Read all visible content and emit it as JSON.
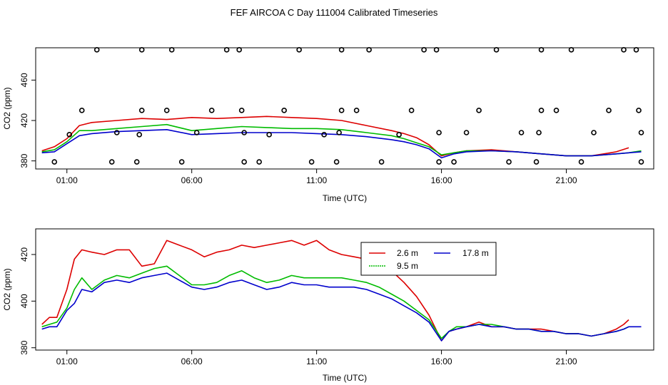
{
  "title": "FEF AIRCOA C  Day 111004  Calibrated Timeseries",
  "colors": {
    "2.6 m": "#dd0000",
    "9.5 m": "#00bb00",
    "17.8 m": "#0000cc",
    "flags": "#000000"
  },
  "chart_data": [
    {
      "type": "line",
      "panel": "top",
      "xlabel": "Time (UTC)",
      "ylabel": "CO2 (ppm)",
      "xlim": [
        -0.25,
        24.5
      ],
      "ylim": [
        372,
        492
      ],
      "xticks": [
        1,
        6,
        11,
        16,
        21
      ],
      "xticklabels": [
        "01:00",
        "06:00",
        "11:00",
        "16:00",
        "21:00"
      ],
      "yticks": [
        380,
        420,
        460
      ],
      "yticklabels": [
        "380",
        "420",
        "460"
      ],
      "grid": false,
      "series": [
        {
          "name": "2.6 m",
          "x": [
            0,
            0.5,
            1,
            1.5,
            2,
            3,
            4,
            5,
            6,
            7,
            8,
            9,
            10,
            11,
            12,
            13,
            14,
            14.5,
            15,
            15.5,
            16,
            16.5,
            17,
            18,
            19,
            20,
            21,
            22,
            22.5,
            23,
            23.5
          ],
          "values": [
            390,
            394,
            402,
            415,
            418,
            420,
            422,
            421,
            423,
            422,
            423,
            424,
            423,
            422,
            420,
            415,
            410,
            407,
            403,
            396,
            385,
            388,
            390,
            391,
            389,
            387,
            385,
            385,
            387,
            389,
            393
          ]
        },
        {
          "name": "9.5 m",
          "x": [
            0,
            0.5,
            1,
            1.5,
            2,
            3,
            4,
            5,
            6,
            7,
            8,
            9,
            10,
            11,
            12,
            13,
            14,
            14.5,
            15,
            15.5,
            16,
            16.5,
            17,
            18,
            19,
            20,
            21,
            22,
            22.5,
            23,
            23.5,
            24
          ],
          "values": [
            389,
            391,
            399,
            410,
            410,
            412,
            414,
            416,
            410,
            412,
            414,
            413,
            412,
            412,
            411,
            408,
            405,
            402,
            398,
            394,
            386,
            388,
            390,
            390,
            389,
            387,
            385,
            385,
            386,
            387,
            388,
            390
          ]
        },
        {
          "name": "17.8 m",
          "x": [
            0,
            0.5,
            1,
            1.5,
            2,
            3,
            4,
            5,
            6,
            7,
            8,
            9,
            10,
            11,
            12,
            13,
            14,
            14.5,
            15,
            15.5,
            16,
            16.5,
            17,
            18,
            19,
            20,
            21,
            22,
            22.5,
            23,
            23.5,
            24
          ],
          "values": [
            388,
            389,
            397,
            405,
            407,
            409,
            410,
            411,
            406,
            407,
            408,
            408,
            408,
            407,
            406,
            404,
            401,
            399,
            396,
            392,
            383,
            387,
            389,
            390,
            389,
            387,
            385,
            385,
            386,
            387,
            388,
            389
          ]
        }
      ],
      "flag_points": [
        {
          "x": 1.1,
          "y": 406
        },
        {
          "x": 1.6,
          "y": 430
        },
        {
          "x": 2.2,
          "y": 490
        },
        {
          "x": 0.5,
          "y": 379
        },
        {
          "x": 2.8,
          "y": 379
        },
        {
          "x": 3.0,
          "y": 408
        },
        {
          "x": 3.8,
          "y": 379
        },
        {
          "x": 3.9,
          "y": 406
        },
        {
          "x": 4.0,
          "y": 430
        },
        {
          "x": 4.0,
          "y": 490
        },
        {
          "x": 5.0,
          "y": 430
        },
        {
          "x": 5.2,
          "y": 490
        },
        {
          "x": 5.6,
          "y": 379
        },
        {
          "x": 6.2,
          "y": 408
        },
        {
          "x": 6.8,
          "y": 430
        },
        {
          "x": 7.4,
          "y": 490
        },
        {
          "x": 7.9,
          "y": 490
        },
        {
          "x": 8.0,
          "y": 430
        },
        {
          "x": 8.1,
          "y": 408
        },
        {
          "x": 8.1,
          "y": 379
        },
        {
          "x": 8.7,
          "y": 379
        },
        {
          "x": 9.1,
          "y": 406
        },
        {
          "x": 9.7,
          "y": 430
        },
        {
          "x": 10.3,
          "y": 490
        },
        {
          "x": 10.8,
          "y": 379
        },
        {
          "x": 11.3,
          "y": 406
        },
        {
          "x": 11.8,
          "y": 379
        },
        {
          "x": 11.9,
          "y": 408
        },
        {
          "x": 12.0,
          "y": 430
        },
        {
          "x": 12.0,
          "y": 490
        },
        {
          "x": 12.6,
          "y": 430
        },
        {
          "x": 13.1,
          "y": 490
        },
        {
          "x": 13.6,
          "y": 379
        },
        {
          "x": 14.3,
          "y": 406
        },
        {
          "x": 14.8,
          "y": 430
        },
        {
          "x": 15.3,
          "y": 490
        },
        {
          "x": 15.8,
          "y": 490
        },
        {
          "x": 15.9,
          "y": 408
        },
        {
          "x": 15.9,
          "y": 379
        },
        {
          "x": 16.5,
          "y": 379
        },
        {
          "x": 17.0,
          "y": 408
        },
        {
          "x": 17.5,
          "y": 430
        },
        {
          "x": 18.2,
          "y": 490
        },
        {
          "x": 18.7,
          "y": 379
        },
        {
          "x": 19.2,
          "y": 408
        },
        {
          "x": 19.8,
          "y": 379
        },
        {
          "x": 19.9,
          "y": 408
        },
        {
          "x": 20.0,
          "y": 430
        },
        {
          "x": 20.0,
          "y": 490
        },
        {
          "x": 20.6,
          "y": 430
        },
        {
          "x": 21.2,
          "y": 490
        },
        {
          "x": 21.6,
          "y": 379
        },
        {
          "x": 22.1,
          "y": 408
        },
        {
          "x": 22.7,
          "y": 430
        },
        {
          "x": 23.3,
          "y": 490
        },
        {
          "x": 23.8,
          "y": 490
        },
        {
          "x": 23.9,
          "y": 430
        },
        {
          "x": 24.0,
          "y": 408
        },
        {
          "x": 24.0,
          "y": 379
        }
      ]
    },
    {
      "type": "line",
      "panel": "bottom",
      "xlabel": "Time (UTC)",
      "ylabel": "CO2 (ppm)",
      "xlim": [
        -0.25,
        24.5
      ],
      "ylim": [
        379,
        431
      ],
      "xticks": [
        1,
        6,
        11,
        16,
        21
      ],
      "xticklabels": [
        "01:00",
        "06:00",
        "11:00",
        "16:00",
        "21:00"
      ],
      "yticks": [
        380,
        400,
        420
      ],
      "yticklabels": [
        "380",
        "400",
        "420"
      ],
      "grid": false,
      "legend": {
        "placement": "top-right",
        "entries": [
          "2.6 m",
          "9.5 m",
          "17.8 m"
        ]
      },
      "series": [
        {
          "name": "2.6 m",
          "x": [
            0,
            0.3,
            0.6,
            1,
            1.3,
            1.6,
            2,
            2.5,
            3,
            3.5,
            4,
            4.5,
            5,
            5.5,
            6,
            6.5,
            7,
            7.5,
            8,
            8.5,
            9,
            9.5,
            10,
            10.5,
            11,
            11.5,
            12,
            12.5,
            13,
            13.5,
            14,
            14.5,
            15,
            15.5,
            16,
            16.3,
            16.6,
            17,
            17.5,
            18,
            18.5,
            19,
            19.5,
            20,
            20.5,
            21,
            21.5,
            22,
            22.5,
            23,
            23.3,
            23.5
          ],
          "values": [
            390,
            393,
            393,
            405,
            418,
            422,
            421,
            420,
            422,
            422,
            415,
            416,
            426,
            424,
            422,
            419,
            421,
            422,
            424,
            423,
            424,
            425,
            426,
            424,
            426,
            422,
            420,
            419,
            418,
            414,
            413,
            408,
            402,
            394,
            383,
            387,
            388,
            389,
            391,
            389,
            389,
            388,
            388,
            388,
            387,
            386,
            386,
            385,
            386,
            388,
            390,
            392
          ]
        },
        {
          "name": "9.5 m",
          "x": [
            0,
            0.3,
            0.6,
            1,
            1.3,
            1.6,
            2,
            2.5,
            3,
            3.5,
            4,
            4.5,
            5,
            5.5,
            6,
            6.5,
            7,
            7.5,
            8,
            8.5,
            9,
            9.5,
            10,
            10.5,
            11,
            11.5,
            12,
            12.5,
            13,
            13.5,
            14,
            14.5,
            15,
            15.5,
            16,
            16.3,
            16.6,
            17,
            17.5,
            18,
            18.5,
            19,
            19.5,
            20,
            20.5,
            21,
            21.5,
            22,
            22.5,
            23,
            23.3,
            23.5
          ],
          "values": [
            389,
            390,
            391,
            397,
            405,
            410,
            405,
            409,
            411,
            410,
            412,
            414,
            415,
            411,
            407,
            407,
            408,
            411,
            413,
            410,
            408,
            409,
            411,
            410,
            410,
            410,
            410,
            409,
            408,
            406,
            403,
            400,
            396,
            392,
            384,
            387,
            389,
            389,
            390,
            390,
            389,
            388,
            388,
            387,
            387,
            386,
            386,
            385,
            386,
            387,
            388,
            389
          ]
        },
        {
          "name": "17.8 m",
          "x": [
            0,
            0.3,
            0.6,
            1,
            1.3,
            1.6,
            2,
            2.5,
            3,
            3.5,
            4,
            4.5,
            5,
            5.5,
            6,
            6.5,
            7,
            7.5,
            8,
            8.5,
            9,
            9.5,
            10,
            10.5,
            11,
            11.5,
            12,
            12.5,
            13,
            13.5,
            14,
            14.5,
            15,
            15.5,
            16,
            16.3,
            16.6,
            17,
            17.5,
            18,
            18.5,
            19,
            19.5,
            20,
            20.5,
            21,
            21.5,
            22,
            22.5,
            23,
            23.3,
            23.5,
            24
          ],
          "values": [
            388,
            389,
            389,
            396,
            399,
            405,
            404,
            408,
            409,
            408,
            410,
            411,
            412,
            409,
            406,
            405,
            406,
            408,
            409,
            407,
            405,
            406,
            408,
            407,
            407,
            406,
            406,
            406,
            405,
            403,
            401,
            398,
            395,
            391,
            383,
            387,
            388,
            389,
            390,
            389,
            389,
            388,
            388,
            387,
            387,
            386,
            386,
            385,
            386,
            387,
            388,
            389,
            389
          ]
        }
      ]
    }
  ]
}
